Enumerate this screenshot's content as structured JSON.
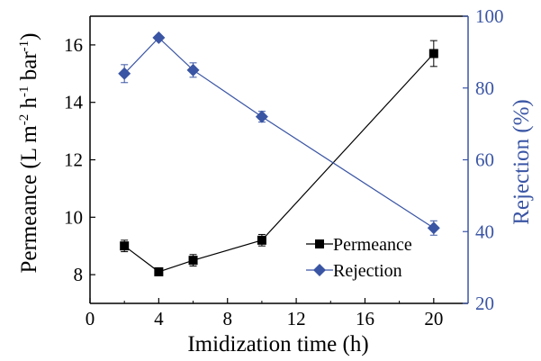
{
  "chart_data": {
    "type": "line",
    "xlabel": "Imidization time (h)",
    "ylabel_left": {
      "base": "Permeance (L m",
      "exp1": "-2",
      "mid1": " h",
      "exp2": "-1",
      "mid2": " bar",
      "exp3": "-1",
      "close": ")"
    },
    "ylabel_right": "Rejection (%)",
    "xlim": [
      0,
      22
    ],
    "ylim_left": [
      7,
      17
    ],
    "ylim_right": [
      20,
      100
    ],
    "x_ticks": [
      "0",
      "4",
      "8",
      "12",
      "16",
      "20"
    ],
    "y_left_ticks": [
      "8",
      "10",
      "12",
      "14",
      "16"
    ],
    "y_right_ticks": [
      "20",
      "40",
      "60",
      "80",
      "100"
    ],
    "legend_position": "center-right",
    "series": [
      {
        "name": "Permeance",
        "axis": "left",
        "marker": "square",
        "color": "#000000",
        "x": [
          2,
          4,
          6,
          10,
          20
        ],
        "y": [
          9.0,
          8.1,
          8.5,
          9.2,
          15.7
        ],
        "yerr": [
          0.2,
          0.1,
          0.2,
          0.2,
          0.45
        ]
      },
      {
        "name": "Rejection",
        "axis": "right",
        "marker": "diamond",
        "color": "#3a55a4",
        "x": [
          2,
          4,
          6,
          10,
          20
        ],
        "y": [
          84,
          94,
          85,
          72,
          41
        ],
        "yerr": [
          2.5,
          0,
          2,
          1.5,
          2
        ]
      }
    ],
    "right_axis_color": "#3a55a4"
  }
}
